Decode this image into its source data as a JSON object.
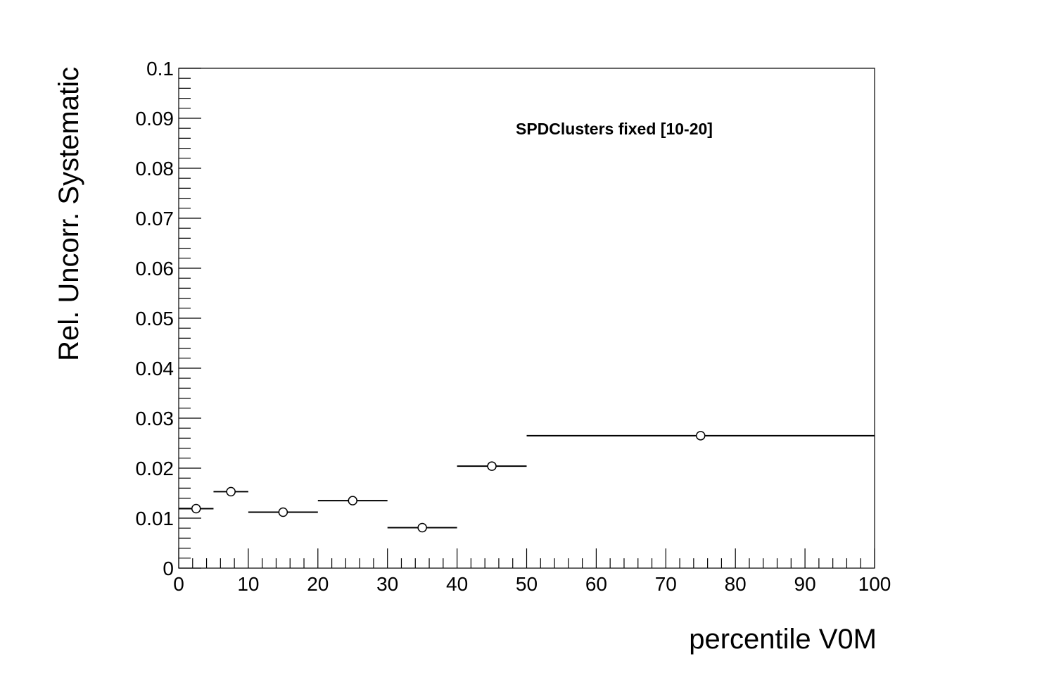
{
  "chart_data": {
    "type": "scatter",
    "title": "",
    "annotation": "SPDClusters fixed [10-20]",
    "xlabel": "percentile V0M",
    "ylabel": "Rel. Uncorr. Systematic",
    "xlim": [
      0,
      100
    ],
    "ylim": [
      0,
      0.1
    ],
    "grid": false,
    "x_tick_labels": [
      "0",
      "10",
      "20",
      "30",
      "40",
      "50",
      "60",
      "70",
      "80",
      "90",
      "100"
    ],
    "y_tick_labels": [
      "0",
      "0.01",
      "0.02",
      "0.03",
      "0.04",
      "0.05",
      "0.06",
      "0.07",
      "0.08",
      "0.09",
      "0.1"
    ],
    "series": [
      {
        "marker": "open-circle",
        "color": "#000000",
        "points": [
          {
            "x": 2.5,
            "x_low": 0,
            "x_high": 5,
            "y": 0.0119
          },
          {
            "x": 7.5,
            "x_low": 5,
            "x_high": 10,
            "y": 0.0153
          },
          {
            "x": 15,
            "x_low": 10,
            "x_high": 20,
            "y": 0.0112
          },
          {
            "x": 25,
            "x_low": 20,
            "x_high": 30,
            "y": 0.0135
          },
          {
            "x": 35,
            "x_low": 30,
            "x_high": 40,
            "y": 0.0081
          },
          {
            "x": 45,
            "x_low": 40,
            "x_high": 50,
            "y": 0.0204
          },
          {
            "x": 75,
            "x_low": 50,
            "x_high": 100,
            "y": 0.0265
          }
        ]
      }
    ]
  }
}
